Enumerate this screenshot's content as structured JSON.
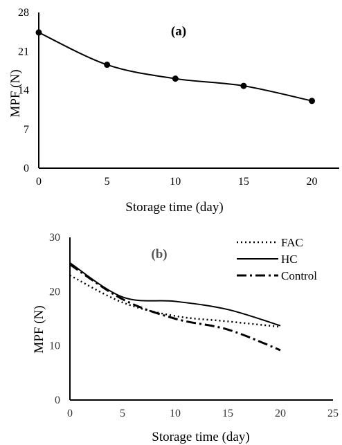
{
  "chart_data": [
    {
      "type": "line",
      "panel_label": "(a)",
      "x": [
        0,
        5,
        10,
        15,
        20
      ],
      "series": [
        {
          "values": [
            24.4,
            18.6,
            16.1,
            14.8,
            12.1
          ],
          "markers": true,
          "color": "#000000"
        }
      ],
      "xlabel": "Storage time (day)",
      "ylabel": "MPF (N)",
      "xlim": [
        0,
        22
      ],
      "ylim": [
        0,
        28
      ],
      "xticks": [
        0,
        5,
        10,
        15,
        20
      ],
      "yticks": [
        0,
        7,
        14,
        21,
        28
      ],
      "grid": false
    },
    {
      "type": "line",
      "panel_label": "(b)",
      "x": [
        0,
        5,
        10,
        15,
        20
      ],
      "series": [
        {
          "name": "FAC",
          "style": "dotted",
          "color": "#000000",
          "values": [
            23.0,
            18.0,
            15.5,
            14.5,
            13.5
          ]
        },
        {
          "name": "HC",
          "style": "solid",
          "color": "#000000",
          "values": [
            25.3,
            19.0,
            18.2,
            16.7,
            13.7
          ]
        },
        {
          "name": "Control",
          "style": "dash-dot",
          "color": "#000000",
          "values": [
            25.0,
            18.6,
            15.0,
            13.0,
            9.2
          ]
        }
      ],
      "xlabel": "Storage time (day)",
      "ylabel": "MPF (N)",
      "xlim": [
        0,
        25
      ],
      "ylim": [
        0,
        30
      ],
      "xticks": [
        0,
        5,
        10,
        15,
        20,
        25
      ],
      "yticks": [
        0,
        10,
        20,
        30
      ],
      "legend": "top-right",
      "grid": false
    }
  ]
}
